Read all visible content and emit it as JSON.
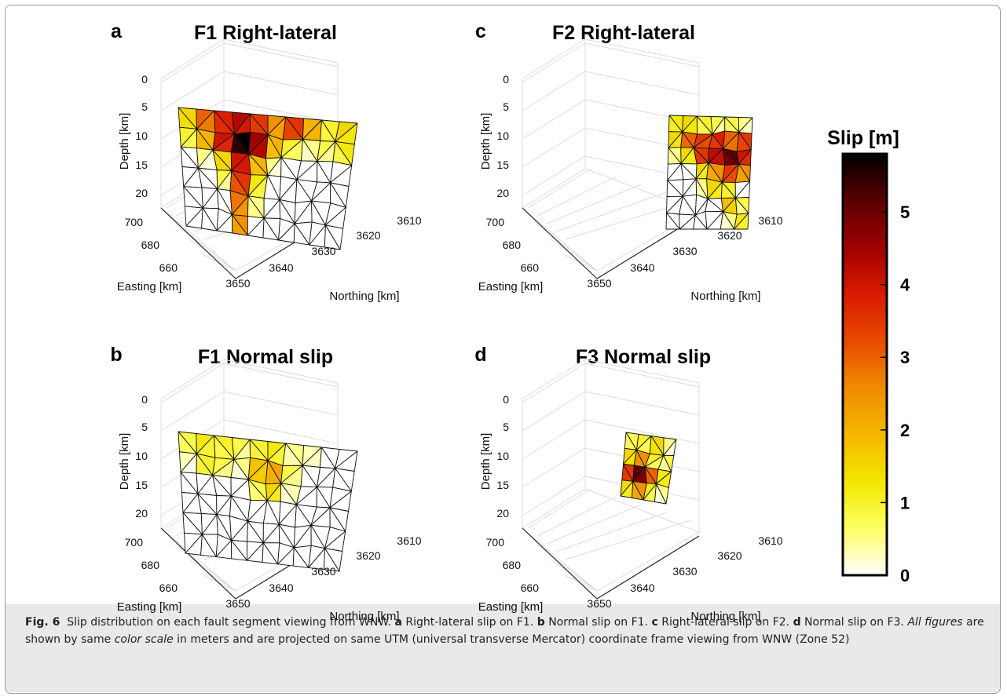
{
  "figure": {
    "colorbar": {
      "title": "Slip [m]",
      "ticks": [
        "0",
        "1",
        "2",
        "3",
        "4",
        "5"
      ],
      "range": [
        0,
        5.8
      ],
      "colors": [
        "#ffffff",
        "#ffff66",
        "#f2e600",
        "#f5b700",
        "#f08c00",
        "#e84a00",
        "#d91a00",
        "#a00000",
        "#5a0000",
        "#000000"
      ]
    },
    "caption": {
      "figlabel": "Fig. 6",
      "t1": "Slip distribution on each fault segment viewing from WNW.",
      "l_a": "a",
      "t2": "Right-lateral slip on F1.",
      "l_b": "b",
      "t3": "Normal slip on F1.",
      "l_c": "c",
      "t4": "Right-lateral slip on F2.",
      "l_d": "d",
      "t5": "Normal slip on F3.",
      "i1": "All figures",
      "t6": "are shown by same",
      "i2": "color scale",
      "t7": "in meters and are projected on same UTM (universal transverse Mercator) coordinate frame viewing from WNW (Zone 52)"
    }
  },
  "chart_data": [
    {
      "type": "surface3d",
      "panel": "a",
      "title": "F1 Right-lateral",
      "zlabel": "Depth [km]",
      "xlabel": "Easting [km]",
      "ylabel": "Northing [km]",
      "depth_ticks": [
        "0",
        "5",
        "10",
        "15",
        "20"
      ],
      "easting_ticks": [
        "700",
        "680",
        "660"
      ],
      "northing_ticks": [
        "3650",
        "3640",
        "3630",
        "3620",
        "3610"
      ],
      "patch_slip_m": [
        [
          1.5,
          3.0,
          3.8,
          4.3,
          3.5,
          2.5,
          3.5,
          2.0,
          1.0,
          1.5
        ],
        [
          1.0,
          2.0,
          4.0,
          5.8,
          4.5,
          2.0,
          1.0,
          0.5,
          0.8,
          1.2
        ],
        [
          0,
          0.5,
          1.5,
          4.0,
          2.0,
          0.5,
          0,
          0,
          0,
          0
        ],
        [
          0,
          0,
          0.8,
          3.5,
          1.2,
          0,
          0,
          0,
          0,
          0
        ],
        [
          0,
          0,
          0,
          2.8,
          0.5,
          0,
          0,
          0,
          0,
          0
        ],
        [
          0,
          0,
          0,
          2.5,
          0,
          0,
          0,
          0,
          0,
          0
        ]
      ]
    },
    {
      "type": "surface3d",
      "panel": "b",
      "title": "F1 Normal slip",
      "zlabel": "Depth [km]",
      "xlabel": "Easting [km]",
      "ylabel": "Northing [km]",
      "depth_ticks": [
        "0",
        "5",
        "10",
        "15",
        "20"
      ],
      "easting_ticks": [
        "700",
        "680",
        "660"
      ],
      "northing_ticks": [
        "3650",
        "3640",
        "3630",
        "3620",
        "3610"
      ],
      "patch_slip_m": [
        [
          0.8,
          1.2,
          1.0,
          0.8,
          1.0,
          1.2,
          0.5,
          0.3,
          0,
          0
        ],
        [
          0.3,
          1.0,
          0.8,
          0.5,
          1.8,
          2.2,
          0.8,
          0,
          0,
          0
        ],
        [
          0,
          0,
          0,
          0,
          0.8,
          1.5,
          0.3,
          0,
          0,
          0
        ],
        [
          0,
          0,
          0,
          0,
          0,
          0,
          0,
          0,
          0,
          0
        ],
        [
          0,
          0,
          0,
          0,
          0,
          0,
          0,
          0,
          0,
          0
        ],
        [
          0,
          0,
          0,
          0,
          0,
          0,
          0,
          0,
          0,
          0
        ]
      ]
    },
    {
      "type": "surface3d",
      "panel": "c",
      "title": "F2 Right-lateral",
      "zlabel": "Depth [km]",
      "xlabel": "Easting [km]",
      "ylabel": "Northing [km]",
      "depth_ticks": [
        "0",
        "5",
        "10",
        "15",
        "20"
      ],
      "easting_ticks": [
        "700",
        "680",
        "660"
      ],
      "northing_ticks": [
        "3650",
        "3640",
        "3630",
        "3620",
        "3610"
      ],
      "patch_slip_m": [
        [
          1.2,
          1.5,
          1.0,
          0.8,
          0.8,
          0.5
        ],
        [
          1.5,
          3.0,
          3.5,
          3.8,
          3.0,
          3.5
        ],
        [
          0.5,
          1.5,
          3.5,
          4.2,
          5.2,
          4.0
        ],
        [
          0,
          0,
          1.5,
          2.5,
          3.5,
          2.5
        ],
        [
          0,
          0,
          0.5,
          1.5,
          1.0,
          0
        ],
        [
          0,
          0,
          0,
          0,
          1.8,
          0.8
        ],
        [
          0,
          0,
          0,
          0,
          0.5,
          1.2
        ]
      ]
    },
    {
      "type": "surface3d",
      "panel": "d",
      "title": "F3 Normal slip",
      "zlabel": "Depth [km]",
      "xlabel": "Easting [km]",
      "ylabel": "Northing [km]",
      "depth_ticks": [
        "0",
        "5",
        "10",
        "15",
        "20"
      ],
      "easting_ticks": [
        "700",
        "680",
        "660"
      ],
      "northing_ticks": [
        "3650",
        "3640",
        "3630",
        "3620",
        "3610"
      ],
      "patch_slip_m": [
        [
          0.8,
          1.0,
          1.5,
          0.5
        ],
        [
          1.5,
          2.5,
          1.0,
          0.8
        ],
        [
          3.5,
          5.2,
          3.0,
          1.2
        ],
        [
          1.5,
          2.5,
          1.2,
          0.5
        ]
      ]
    }
  ]
}
